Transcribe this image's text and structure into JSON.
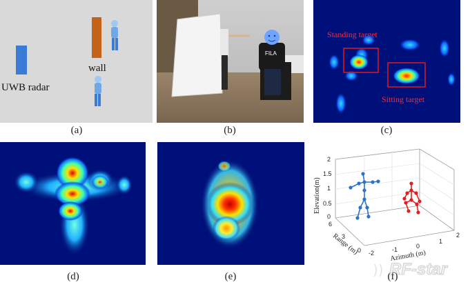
{
  "panel_a": {
    "caption": "(a)",
    "label_wall": "wall",
    "label_radar": "UWB radar"
  },
  "panel_b": {
    "caption": "(b)",
    "shirt_text": "FILA"
  },
  "panel_c": {
    "caption": "(c)",
    "label_standing": "Standing target",
    "label_sitting": "Sitting target"
  },
  "panel_d": {
    "caption": "(d)"
  },
  "panel_e": {
    "caption": "(e)"
  },
  "panel_f": {
    "caption": "(f)",
    "zlabel": "Elevation(m)",
    "ylabel": "Range (m)",
    "xlabel": "Azimuth (m)",
    "z_ticks": [
      "0",
      "0.5",
      "1",
      "1.5",
      "2"
    ],
    "range_ticks": [
      "0",
      "3",
      "6"
    ],
    "az_ticks": [
      "-2",
      "-1",
      "0",
      "1",
      "2"
    ]
  },
  "watermark": "RF-star",
  "colors": {
    "heat_bg": "#00107a",
    "skeleton_standing": "#2a73c8",
    "skeleton_sitting": "#e02020",
    "box": "#e01818",
    "wall": "#c4621a",
    "radar": "#3a7bd5"
  }
}
